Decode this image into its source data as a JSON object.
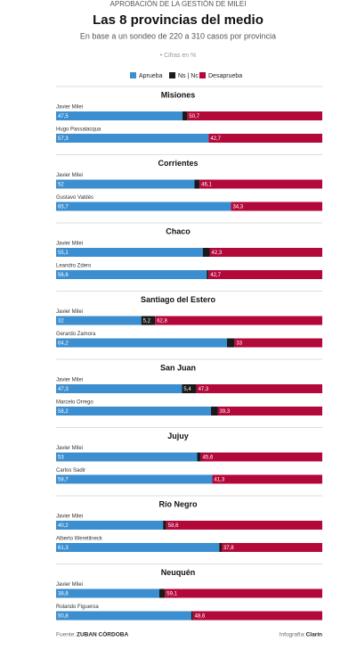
{
  "chart_data": {
    "type": "bar",
    "kicker": "APROBACIÓN DE LA GESTIÓN DE MILEI",
    "title": "Las 8 provincias del medio",
    "subtitle": "En base a un sondeo de 220 a 310 casos por provincia",
    "note": "• Cifras en %",
    "groups": [
      "Misiones",
      "Corrientes",
      "Chaco",
      "Santiago del Estero",
      "San Juan",
      "Jujuy",
      "Río Negro",
      "Neuquén"
    ],
    "categories": [
      "Javier Milei",
      "Hugo Passalacqua",
      "Javier Milei",
      "Gustavo Valdés",
      "Javier Milei",
      "Leandro Zdero",
      "Javier Milei",
      "Gerardo Zamora",
      "Javier Milei",
      "Marcelo Orrego",
      "Javier Milei",
      "Carlos Sadir",
      "Javier Milei",
      "Alberto Weretilneck",
      "Javier Milei",
      "Rolando Figueroa"
    ],
    "xlim": [
      0,
      100
    ],
    "series": [
      {
        "name": "Aprueba",
        "color": "#3b8ecf",
        "values": [
          47.5,
          57.3,
          52,
          65.7,
          55.1,
          56.6,
          32,
          64.2,
          47.3,
          58.2,
          53,
          58.7,
          40.2,
          61.3,
          38.8,
          50.8
        ],
        "value_labels": [
          "47,5",
          "57,3",
          "52",
          "65,7",
          "55,1",
          "56,6",
          "32",
          "64,2",
          "47,3",
          "58,2",
          "53",
          "58,7",
          "40,2",
          "61,3",
          "38,8",
          "50,8"
        ]
      },
      {
        "name": "Ns | Nc",
        "color": "#1a1a1a",
        "values": [
          1.8,
          0,
          1.9,
          0,
          2.6,
          0.7,
          5.2,
          2.8,
          5.4,
          2.5,
          1.4,
          0,
          1.2,
          0.9,
          2.1,
          0.6
        ],
        "value_labels": [
          null,
          null,
          null,
          null,
          null,
          null,
          "5,2",
          null,
          "5,4",
          null,
          null,
          null,
          null,
          null,
          null,
          null
        ]
      },
      {
        "name": "Desaprueba",
        "color": "#b3083a",
        "values": [
          50.7,
          42.7,
          46.1,
          34.3,
          42.3,
          42.7,
          62.8,
          33,
          47.3,
          39.3,
          45.6,
          41.3,
          58.6,
          37.8,
          59.1,
          48.6
        ],
        "value_labels": [
          "50,7",
          "42,7",
          "46,1",
          "34,3",
          "42,3",
          "42,7",
          "62,8",
          "33",
          "47,3",
          "39,3",
          "45,6",
          "41,3",
          "58,6",
          "37,8",
          "59,1",
          "48,6"
        ]
      }
    ],
    "source_label": "Fuente:",
    "source": "ZUBAN CÓRDOBA",
    "credit_label": "Infografía:",
    "credit": "Clarín"
  }
}
